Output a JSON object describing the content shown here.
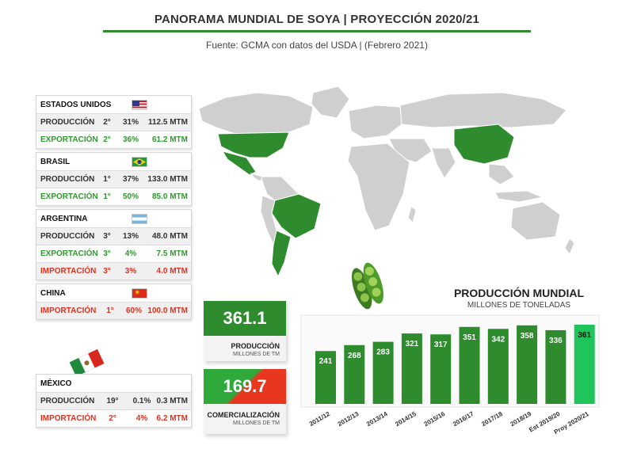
{
  "header": {
    "title": "PANORAMA MUNDIAL DE SOYA | PROYECCIÓN 2020/21",
    "source": "Fuente: GCMA con datos del USDA | (Febrero 2021)"
  },
  "countries": {
    "usa": {
      "name": "ESTADOS UNIDOS",
      "rows": [
        {
          "label": "PRODUCCIÓN",
          "rank": "2°",
          "share": "31%",
          "amount": "112.5 MTM",
          "kind": "dark"
        },
        {
          "label": "EXPORTACIÓN",
          "rank": "2°",
          "share": "36%",
          "amount": "61.2 MTM",
          "kind": "green"
        }
      ]
    },
    "brasil": {
      "name": "BRASIL",
      "rows": [
        {
          "label": "PRODUCCIÓN",
          "rank": "1°",
          "share": "37%",
          "amount": "133.0 MTM",
          "kind": "dark"
        },
        {
          "label": "EXPORTACIÓN",
          "rank": "1°",
          "share": "50%",
          "amount": "85.0 MTM",
          "kind": "green"
        }
      ]
    },
    "argentina": {
      "name": "ARGENTINA",
      "rows": [
        {
          "label": "PRODUCCIÓN",
          "rank": "3°",
          "share": "13%",
          "amount": "48.0 MTM",
          "kind": "dark"
        },
        {
          "label": "EXPORTACIÓN",
          "rank": "3°",
          "share": "4%",
          "amount": "7.5 MTM",
          "kind": "green"
        },
        {
          "label": "IMPORTACIÓN",
          "rank": "3°",
          "share": "3%",
          "amount": "4.0 MTM",
          "kind": "red"
        }
      ]
    },
    "china": {
      "name": "CHINA",
      "rows": [
        {
          "label": "IMPORTACIÓN",
          "rank": "1°",
          "share": "60%",
          "amount": "100.0 MTM",
          "kind": "red"
        }
      ]
    },
    "mexico": {
      "name": "MÉXICO",
      "rows": [
        {
          "label": "PRODUCCIÓN",
          "rank": "19°",
          "share": "0.1%",
          "amount": "0.3 MTM",
          "kind": "dark"
        },
        {
          "label": "IMPORTACIÓN",
          "rank": "2°",
          "share": "4%",
          "amount": "6.2 MTM",
          "kind": "red"
        }
      ]
    }
  },
  "kpis": {
    "production": {
      "value": "361.1",
      "label": "PRODUCCIÓN",
      "unit": "MILLONES DE TM"
    },
    "trade": {
      "value": "169.7",
      "label": "COMERCIALIZACIÓN",
      "unit": "MILLONES DE TM"
    }
  },
  "colors": {
    "green": "#2e8b2e",
    "bright_green": "#1fc55a",
    "red": "#e0301e",
    "map_gray": "#cfcfcf"
  },
  "chart_data": {
    "type": "bar",
    "title": "PRODUCCIÓN MUNDIAL",
    "subtitle": "MILLONES DE TONELADAS",
    "categories": [
      "2011/12",
      "2012/13",
      "2013/14",
      "2014/15",
      "2015/16",
      "2016/17",
      "2017/18",
      "2018/19",
      "Est 2019/20",
      "Proy 2020/21"
    ],
    "values": [
      241,
      268,
      283,
      321,
      317,
      351,
      342,
      358,
      336,
      361
    ],
    "ylim": [
      0,
      380
    ],
    "grid": false,
    "legend": "none"
  }
}
